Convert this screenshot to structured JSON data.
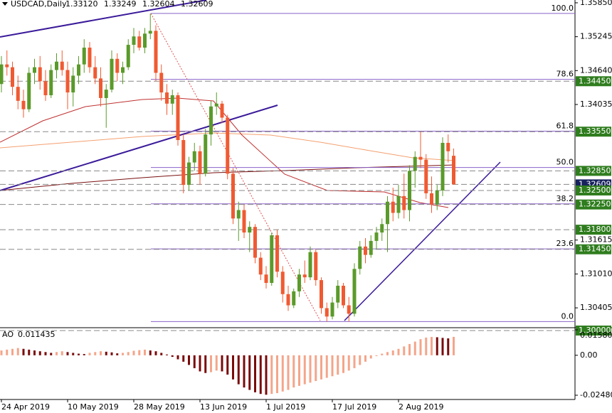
{
  "chart_data": {
    "type": "candlestick",
    "title": "USDCAD,Daily",
    "header_values": [
      {
        "value": 1.3312,
        "label": "1.33120"
      },
      1.33249,
      {
        "value": 1.32604,
        "label": "1.32604"
      },
      1.32609
    ],
    "up_color": "#5a9a2a",
    "down_color": "#f05a32",
    "categories": [
      "24 Apr 2019",
      null,
      null,
      null,
      null,
      null,
      null,
      null,
      null,
      null,
      null,
      null,
      "10 May 2019",
      null,
      null,
      null,
      null,
      null,
      null,
      null,
      null,
      null,
      null,
      null,
      "28 May 2019",
      null,
      null,
      null,
      null,
      null,
      null,
      null,
      null,
      null,
      null,
      null,
      "13 Jun 2019",
      null,
      null,
      null,
      null,
      null,
      null,
      null,
      null,
      null,
      null,
      null,
      "1 Jul 2019",
      null,
      null,
      null,
      null,
      null,
      null,
      null,
      null,
      null,
      null,
      null,
      "17 Jul 2019",
      null,
      null,
      null,
      null,
      null,
      null,
      null,
      null,
      null,
      null,
      null,
      "2 Aug 2019",
      null,
      null,
      null,
      null,
      null,
      null,
      null,
      null,
      null,
      null
    ],
    "ohlc": [
      [
        1.344,
        1.349,
        1.3425,
        1.3475
      ],
      [
        1.3475,
        1.35,
        1.3455,
        1.347
      ],
      [
        1.347,
        1.348,
        1.342,
        1.3435
      ],
      [
        1.3435,
        1.3455,
        1.3395,
        1.341
      ],
      [
        1.341,
        1.343,
        1.338,
        1.3395
      ],
      [
        1.3395,
        1.347,
        1.339,
        1.346
      ],
      [
        1.346,
        1.3485,
        1.344,
        1.347
      ],
      [
        1.347,
        1.349,
        1.343,
        1.3445
      ],
      [
        1.3445,
        1.3465,
        1.341,
        1.342
      ],
      [
        1.342,
        1.3475,
        1.3415,
        1.3465
      ],
      [
        1.3465,
        1.3495,
        1.345,
        1.348
      ],
      [
        1.348,
        1.35,
        1.3455,
        1.3465
      ],
      [
        1.3465,
        1.348,
        1.3395,
        1.3425
      ],
      [
        1.3425,
        1.347,
        1.34,
        1.3455
      ],
      [
        1.3455,
        1.349,
        1.344,
        1.3475
      ],
      [
        1.3475,
        1.352,
        1.346,
        1.3505
      ],
      [
        1.3505,
        1.3515,
        1.346,
        1.347
      ],
      [
        1.347,
        1.349,
        1.344,
        1.345
      ],
      [
        1.345,
        1.347,
        1.34,
        1.3415
      ],
      [
        1.3415,
        1.344,
        1.3362,
        1.343
      ],
      [
        1.343,
        1.35,
        1.3425,
        1.3485
      ],
      [
        1.3485,
        1.3495,
        1.3445,
        1.346
      ],
      [
        1.346,
        1.348,
        1.344,
        1.347
      ],
      [
        1.347,
        1.352,
        1.3465,
        1.351
      ],
      [
        1.351,
        1.354,
        1.3495,
        1.3525
      ],
      [
        1.3525,
        1.3535,
        1.35,
        1.3505
      ],
      [
        1.3505,
        1.354,
        1.3495,
        1.353
      ],
      [
        1.353,
        1.3566,
        1.352,
        1.3535
      ],
      [
        1.3535,
        1.3545,
        1.3445,
        1.346
      ],
      [
        1.346,
        1.3475,
        1.341,
        1.3425
      ],
      [
        1.3425,
        1.344,
        1.3385,
        1.3405
      ],
      [
        1.3405,
        1.343,
        1.3385,
        1.342
      ],
      [
        1.342,
        1.3425,
        1.333,
        1.334
      ],
      [
        1.334,
        1.335,
        1.3245,
        1.326
      ],
      [
        1.326,
        1.331,
        1.325,
        1.33
      ],
      [
        1.33,
        1.3335,
        1.3285,
        1.332
      ],
      [
        1.332,
        1.333,
        1.326,
        1.328
      ],
      [
        1.328,
        1.336,
        1.3275,
        1.335
      ],
      [
        1.335,
        1.341,
        1.333,
        1.34
      ],
      [
        1.34,
        1.3425,
        1.3385,
        1.3405
      ],
      [
        1.3405,
        1.341,
        1.337,
        1.338
      ],
      [
        1.338,
        1.3385,
        1.327,
        1.328
      ],
      [
        1.328,
        1.329,
        1.319,
        1.32
      ],
      [
        1.32,
        1.323,
        1.316,
        1.3215
      ],
      [
        1.3215,
        1.3225,
        1.3165,
        1.3175
      ],
      [
        1.3175,
        1.3195,
        1.314,
        1.3185
      ],
      [
        1.3185,
        1.319,
        1.312,
        1.313
      ],
      [
        1.313,
        1.314,
        1.309,
        1.31
      ],
      [
        1.31,
        1.3115,
        1.3075,
        1.3085
      ],
      [
        1.3085,
        1.3175,
        1.308,
        1.317
      ],
      [
        1.317,
        1.318,
        1.3095,
        1.3105
      ],
      [
        1.3105,
        1.3115,
        1.305,
        1.3065
      ],
      [
        1.3065,
        1.308,
        1.3035,
        1.3045
      ],
      [
        1.3045,
        1.3075,
        1.304,
        1.307
      ],
      [
        1.307,
        1.311,
        1.306,
        1.31
      ],
      [
        1.31,
        1.3125,
        1.3085,
        1.3095
      ],
      [
        1.3095,
        1.315,
        1.309,
        1.314
      ],
      [
        1.314,
        1.3145,
        1.308,
        1.309
      ],
      [
        1.309,
        1.3095,
        1.303,
        1.304
      ],
      [
        1.304,
        1.305,
        1.3016,
        1.3025
      ],
      [
        1.3025,
        1.306,
        1.302,
        1.305
      ],
      [
        1.305,
        1.309,
        1.304,
        1.308
      ],
      [
        1.308,
        1.3085,
        1.304,
        1.3045
      ],
      [
        1.3045,
        1.306,
        1.3016,
        1.303
      ],
      [
        1.303,
        1.312,
        1.3025,
        1.311
      ],
      [
        1.311,
        1.316,
        1.31,
        1.315
      ],
      [
        1.315,
        1.3165,
        1.312,
        1.3135
      ],
      [
        1.3135,
        1.317,
        1.313,
        1.316
      ],
      [
        1.316,
        1.3185,
        1.3145,
        1.3175
      ],
      [
        1.3175,
        1.32,
        1.316,
        1.319
      ],
      [
        1.319,
        1.324,
        1.314,
        1.323
      ],
      [
        1.323,
        1.3255,
        1.3195,
        1.321
      ],
      [
        1.321,
        1.326,
        1.32,
        1.324
      ],
      [
        1.324,
        1.328,
        1.32,
        1.3215
      ],
      [
        1.3215,
        1.3295,
        1.3195,
        1.3285
      ],
      [
        1.3285,
        1.332,
        1.3255,
        1.331
      ],
      [
        1.331,
        1.3355,
        1.329,
        1.3305
      ],
      [
        1.3305,
        1.3315,
        1.3235,
        1.3245
      ],
      [
        1.3245,
        1.3275,
        1.321,
        1.3225
      ],
      [
        1.3225,
        1.326,
        1.3215,
        1.325
      ],
      [
        1.325,
        1.3345,
        1.324,
        1.3335
      ],
      [
        1.3335,
        1.335,
        1.33,
        1.332
      ],
      [
        1.3312,
        1.33249,
        1.32604,
        1.32609
      ]
    ],
    "ylim": [
      1.3,
      1.359
    ],
    "yticks": [
      {
        "value": 1.3585,
        "label": "1.35850"
      },
      1.35245,
      {
        "value": 1.3464,
        "label": "1.34640"
      },
      1.34035,
      1.31615,
      {
        "value": 1.3101,
        "label": "1.31010"
      },
      1.30405
    ],
    "levels": [
      {
        "value": 1.3445,
        "label": "1.34450",
        "color": "#2f7d1e"
      },
      {
        "value": 1.3355,
        "label": "1.33550",
        "color": "#2f7d1e"
      },
      {
        "value": 1.3285,
        "label": "1.32850",
        "color": "#2f7d1e"
      },
      {
        "value": 1.32609,
        "label": "1.32609",
        "color": "#17225e"
      },
      {
        "value": 1.325,
        "label": "1.32500",
        "color": "#2f7d1e"
      },
      {
        "value": 1.3225,
        "label": "1.32250",
        "color": "#2f7d1e"
      },
      {
        "value": 1.318,
        "label": "1.31800",
        "color": "#2f7d1e"
      },
      {
        "value": 1.3145,
        "label": "1.31450",
        "color": "#2f7d1e"
      },
      {
        "value": 1.3,
        "label": "1.30000",
        "color": "#2f7d1e"
      }
    ],
    "fib": {
      "high": 1.3566,
      "low": 1.3016,
      "color": "#8a63c8",
      "levels": [
        {
          "value": 100,
          "label": "100.0"
        },
        78.6,
        61.8,
        {
          "value": 50,
          "label": "50.0"
        },
        38.2,
        23.6,
        {
          "value": 0,
          "label": "0.0"
        }
      ]
    },
    "ao": {
      "name": "AO",
      "rise_color": "#f4a58a",
      "fall_color": "#7a0a0a",
      "ylim": [
        -0.024803,
        0.015801
      ],
      "yticks": [
        0.015801,
        {
          "value": 0,
          "label": "0.00"
        },
        -0.024803
      ],
      "values": [
        0.003,
        0.0035,
        0.004,
        0.0045,
        0.004,
        0.0035,
        0.003,
        0.0025,
        0.002,
        0.0015,
        0.002,
        0.0025,
        0.002,
        0.0015,
        0.001,
        0.0008,
        0.0015,
        0.002,
        0.0025,
        0.0022,
        0.0018,
        0.0012,
        0.0015,
        0.002,
        0.0028,
        0.0032,
        0.0035,
        0.003,
        0.0025,
        0.0015,
        0.0005,
        -0.001,
        -0.0025,
        -0.004,
        -0.006,
        -0.008,
        -0.01,
        -0.011,
        -0.0105,
        -0.0095,
        -0.01,
        -0.012,
        -0.015,
        -0.018,
        -0.02,
        -0.0215,
        -0.023,
        -0.024,
        -0.0245,
        -0.024,
        -0.0235,
        -0.0225,
        -0.0215,
        -0.02,
        -0.019,
        -0.018,
        -0.017,
        -0.016,
        -0.015,
        -0.014,
        -0.013,
        -0.012,
        -0.011,
        -0.0095,
        -0.008,
        -0.006,
        -0.004,
        -0.002,
        -0.0005,
        0.001,
        0.002,
        0.003,
        0.004,
        0.0055,
        0.007,
        0.0085,
        0.01,
        0.011,
        0.0114,
        0.0112,
        0.0108,
        0.0105,
        0.011435
      ]
    }
  }
}
